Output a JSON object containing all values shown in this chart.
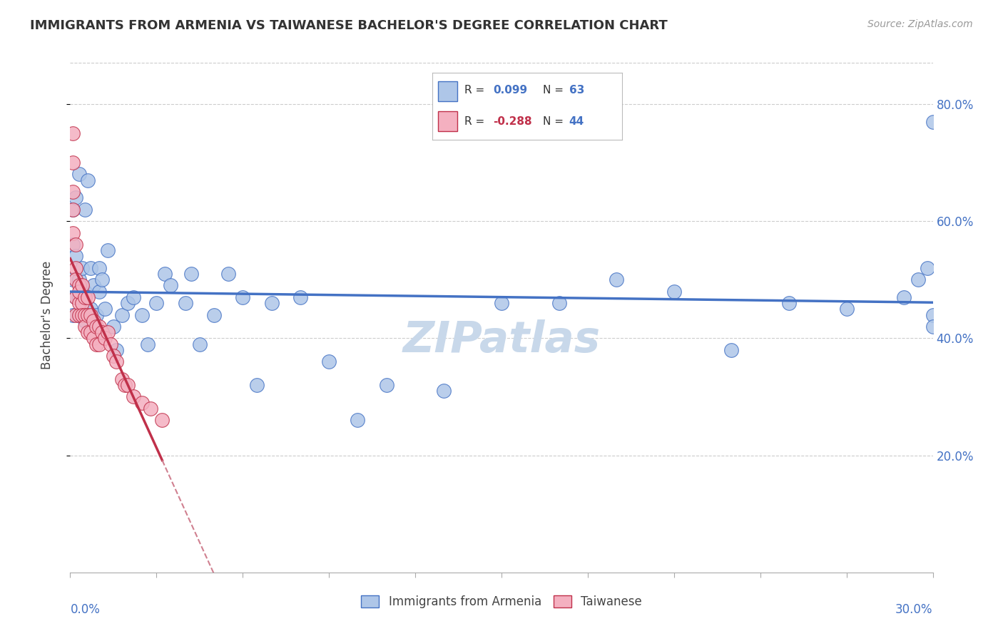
{
  "title": "IMMIGRANTS FROM ARMENIA VS TAIWANESE BACHELOR'S DEGREE CORRELATION CHART",
  "source": "Source: ZipAtlas.com",
  "ylabel": "Bachelor's Degree",
  "ylabel_right_ticks": [
    "80.0%",
    "60.0%",
    "40.0%",
    "20.0%"
  ],
  "ylabel_right_vals": [
    0.8,
    0.6,
    0.4,
    0.2
  ],
  "xlim": [
    0.0,
    0.3
  ],
  "ylim": [
    0.0,
    0.88
  ],
  "r_armenia": 0.099,
  "r_taiwanese": -0.288,
  "n_armenia": 63,
  "n_taiwanese": 44,
  "color_armenia": "#aec6e8",
  "color_armenian_line": "#4472c4",
  "color_taiwanese": "#f4b0c0",
  "color_taiwanese_line": "#c0304a",
  "color_taiwanese_dashed": "#d08090",
  "watermark_color": "#c8d8ea",
  "grid_color": "#cccccc",
  "armenia_x": [
    0.001,
    0.001,
    0.001,
    0.001,
    0.002,
    0.002,
    0.002,
    0.003,
    0.003,
    0.003,
    0.003,
    0.004,
    0.004,
    0.005,
    0.005,
    0.005,
    0.006,
    0.007,
    0.007,
    0.008,
    0.008,
    0.009,
    0.01,
    0.01,
    0.011,
    0.012,
    0.013,
    0.015,
    0.016,
    0.018,
    0.02,
    0.022,
    0.025,
    0.027,
    0.03,
    0.033,
    0.035,
    0.04,
    0.042,
    0.045,
    0.05,
    0.055,
    0.06,
    0.065,
    0.07,
    0.08,
    0.09,
    0.1,
    0.11,
    0.13,
    0.15,
    0.17,
    0.19,
    0.21,
    0.23,
    0.25,
    0.27,
    0.29,
    0.295,
    0.298,
    0.3,
    0.3,
    0.3
  ],
  "armenia_y": [
    0.44,
    0.5,
    0.56,
    0.62,
    0.64,
    0.54,
    0.47,
    0.5,
    0.47,
    0.44,
    0.68,
    0.48,
    0.52,
    0.62,
    0.48,
    0.43,
    0.67,
    0.52,
    0.45,
    0.49,
    0.42,
    0.44,
    0.52,
    0.48,
    0.5,
    0.45,
    0.55,
    0.42,
    0.38,
    0.44,
    0.46,
    0.47,
    0.44,
    0.39,
    0.46,
    0.51,
    0.49,
    0.46,
    0.51,
    0.39,
    0.44,
    0.51,
    0.47,
    0.32,
    0.46,
    0.47,
    0.36,
    0.26,
    0.32,
    0.31,
    0.46,
    0.46,
    0.5,
    0.48,
    0.38,
    0.46,
    0.45,
    0.47,
    0.5,
    0.52,
    0.77,
    0.44,
    0.42
  ],
  "taiwanese_x": [
    0.001,
    0.001,
    0.001,
    0.001,
    0.001,
    0.002,
    0.002,
    0.002,
    0.002,
    0.002,
    0.003,
    0.003,
    0.003,
    0.003,
    0.004,
    0.004,
    0.004,
    0.005,
    0.005,
    0.005,
    0.006,
    0.006,
    0.006,
    0.007,
    0.007,
    0.008,
    0.008,
    0.009,
    0.009,
    0.01,
    0.01,
    0.011,
    0.012,
    0.013,
    0.014,
    0.015,
    0.016,
    0.018,
    0.019,
    0.02,
    0.022,
    0.025,
    0.028,
    0.032
  ],
  "taiwanese_y": [
    0.75,
    0.7,
    0.65,
    0.62,
    0.58,
    0.56,
    0.52,
    0.47,
    0.44,
    0.5,
    0.49,
    0.46,
    0.44,
    0.48,
    0.49,
    0.46,
    0.44,
    0.47,
    0.44,
    0.42,
    0.47,
    0.44,
    0.41,
    0.44,
    0.41,
    0.43,
    0.4,
    0.42,
    0.39,
    0.42,
    0.39,
    0.41,
    0.4,
    0.41,
    0.39,
    0.37,
    0.36,
    0.33,
    0.32,
    0.32,
    0.3,
    0.29,
    0.28,
    0.26
  ]
}
